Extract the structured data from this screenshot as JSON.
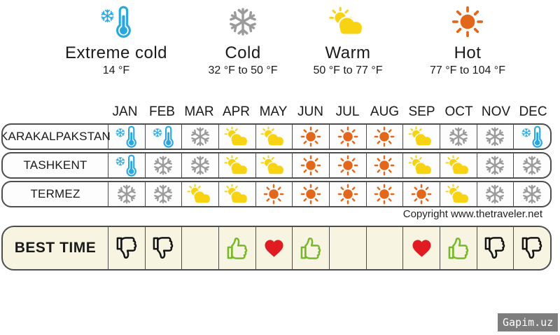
{
  "chart_data": {
    "type": "table",
    "categories": [
      "JAN",
      "FEB",
      "MAR",
      "APR",
      "MAY",
      "JUN",
      "JUL",
      "AUG",
      "SEP",
      "OCT",
      "NOV",
      "DEC"
    ],
    "legend": [
      {
        "type": "extreme-cold",
        "icon": "snowflake-thermometer-icon",
        "label": "Extreme cold",
        "range": "14 °F"
      },
      {
        "type": "cold",
        "icon": "snowflake-icon",
        "label": "Cold",
        "range": "32 °F to 50 °F"
      },
      {
        "type": "warm",
        "icon": "sun-cloud-icon",
        "label": "Warm",
        "range": "50 °F to 77 °F"
      },
      {
        "type": "hot",
        "icon": "sun-icon",
        "label": "Hot",
        "range": "77 °F to 104 °F"
      }
    ],
    "rows": [
      {
        "label": "KARAKALPAKSTAN",
        "values": [
          "extreme-cold",
          "extreme-cold",
          "cold",
          "warm",
          "warm",
          "hot",
          "hot",
          "hot",
          "warm",
          "cold",
          "cold",
          "extreme-cold"
        ]
      },
      {
        "label": "TASHKENT",
        "values": [
          "extreme-cold",
          "cold",
          "cold",
          "warm",
          "warm",
          "hot",
          "hot",
          "hot",
          "warm",
          "warm",
          "cold",
          "cold"
        ]
      },
      {
        "label": "TERMEZ",
        "values": [
          "cold",
          "cold",
          "warm",
          "warm",
          "hot",
          "hot",
          "hot",
          "hot",
          "hot",
          "warm",
          "cold",
          "cold"
        ]
      }
    ],
    "best_time": {
      "label": "BEST TIME",
      "values": [
        "thumbs-down",
        "thumbs-down",
        "none",
        "thumbs-up",
        "heart",
        "thumbs-up",
        "none",
        "none",
        "heart",
        "thumbs-up",
        "thumbs-down",
        "thumbs-down"
      ]
    }
  },
  "copyright": "Copyright www.thetraveler.net",
  "watermark": "Gapim.uz",
  "colors": {
    "extreme_cold": "#2BA7E0",
    "cold": "#9B9B9B",
    "warm": "#F7D313",
    "hot": "#E2671A",
    "thumbs_up": "#76B82A",
    "thumbs_down": "#141414",
    "heart": "#E01B22"
  }
}
